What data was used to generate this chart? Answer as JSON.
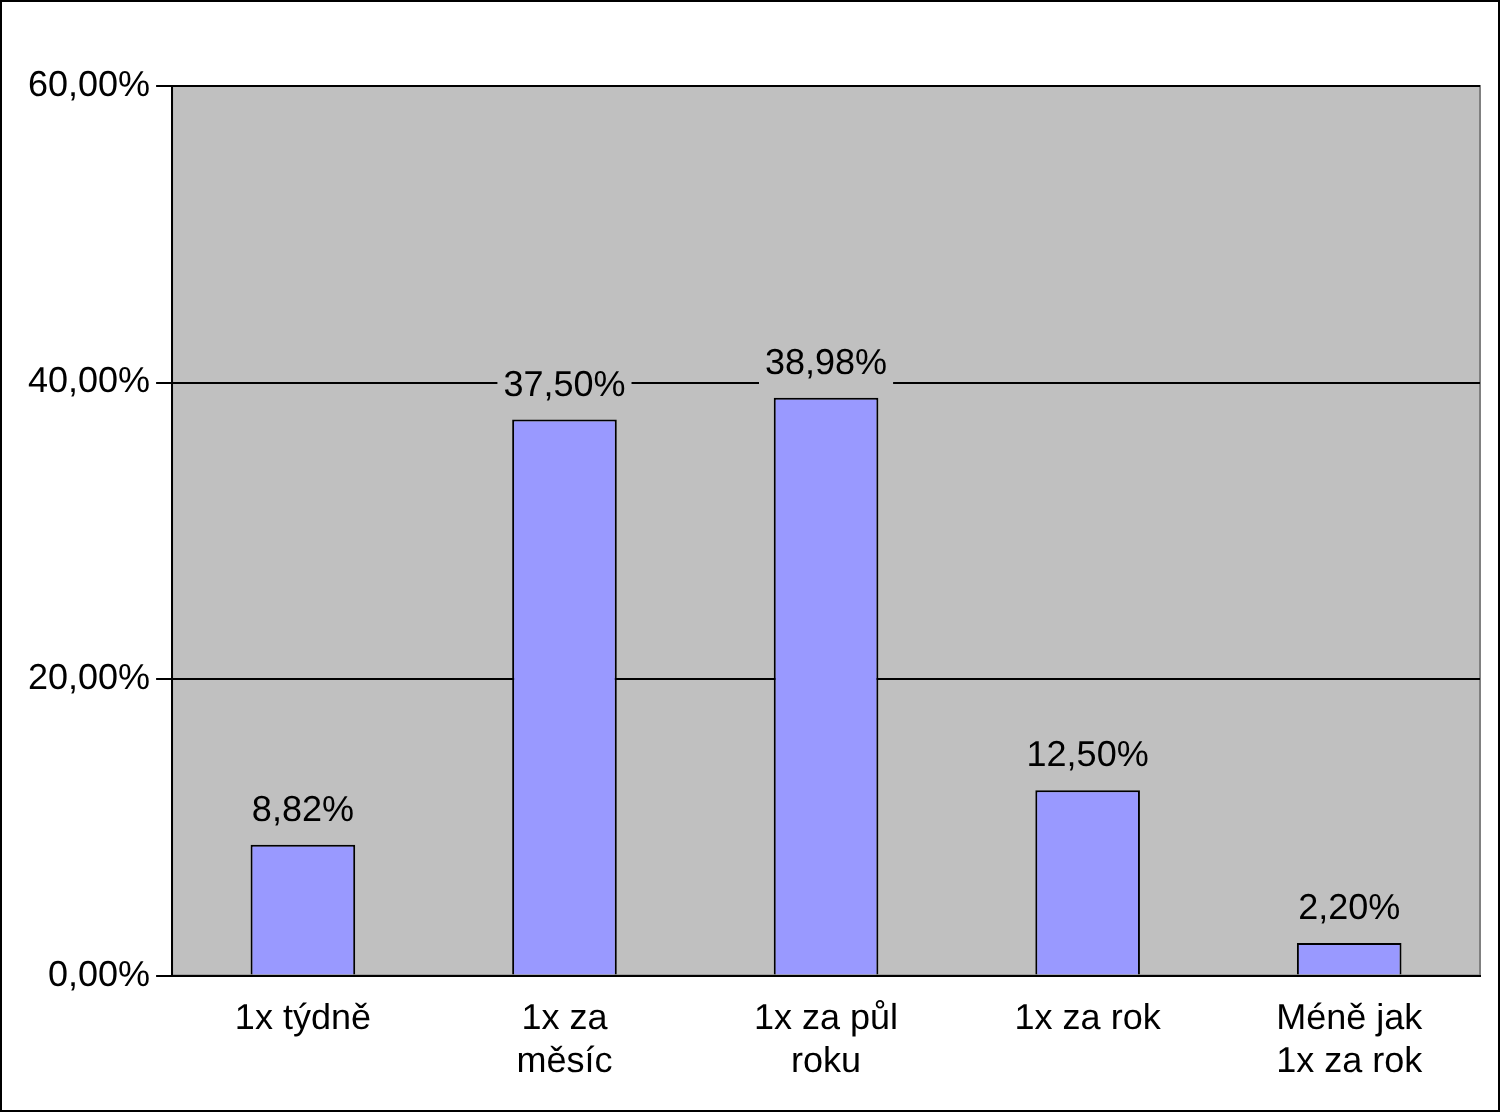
{
  "chart_data": {
    "type": "bar",
    "categories": [
      "1x týdně",
      "1x za měsíc",
      "1x za půl roku",
      "1x za rok",
      "Méně jak 1x za rok"
    ],
    "values": [
      8.82,
      37.5,
      38.98,
      12.5,
      2.2
    ],
    "color": "#9999ff",
    "value_labels": [
      "8,82%",
      "37,50%",
      "38,98%",
      "12,50%",
      "2,20%"
    ],
    "ylim": [
      0,
      60
    ],
    "yticks": [
      {
        "value": 0,
        "label": "0,00%"
      },
      {
        "value": 20,
        "label": "20,00%"
      },
      {
        "value": 40,
        "label": "40,00%"
      },
      {
        "value": 60,
        "label": "60,00%"
      }
    ],
    "grid": "y",
    "legend": false
  }
}
